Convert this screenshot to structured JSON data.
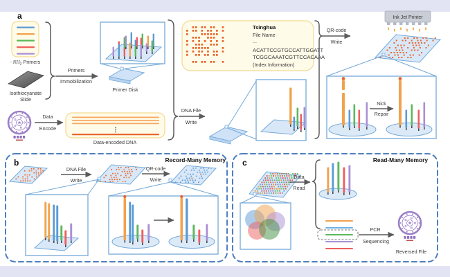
{
  "figure": {
    "panel_a": {
      "label": "a",
      "primers_math": "−NH",
      "primers_sub": "2",
      "primers_rest": " Primers",
      "slide_line1": "Isothiocyanate",
      "slide_line2": "Slide",
      "immobilization_line1": "Primers",
      "immobilization_line2": "Immobilization",
      "primer_disk": "Primer Disk",
      "encode_line1": "Data",
      "encode_line2": "Encode",
      "encoded_dna": "Data-encoded DNA",
      "file_title": "Tsinghua",
      "file_name": "File Name",
      "file_dots": "...",
      "file_seq1": "ACATTCCGTGCCATTGGATT",
      "file_seq2": "TCGGCAAATCGTTCCACAAA",
      "file_index": "(Index Information)",
      "dna_write_line1": "DNA File",
      "dna_write_line2": "Write",
      "qr_write_line1": "QR-code",
      "qr_write_line2": "Write",
      "printer": "Ink Jet Printer",
      "nick_line1": "Nick",
      "nick_line2": "Repair"
    },
    "panel_b": {
      "label": "b",
      "title": "Record-Many Memory",
      "dna_write_line1": "DNA File",
      "dna_write_line2": "Write",
      "qr_write_line1": "QR-code",
      "qr_write_line2": "Write"
    },
    "panel_c": {
      "label": "c",
      "title": "Read-Many Memory",
      "read_line1": "Data",
      "read_line2": "Read",
      "pcr_line1": "PCR",
      "pcr_line2": "Sequencing",
      "reversed_file": "Reversed File"
    }
  },
  "colors": {
    "band": "#e3e4f3",
    "strand_blue": "#5b9bd5",
    "strand_orange": "#f2a24c",
    "strand_green": "#5cb85c",
    "strand_red": "#ee5f5f",
    "strand_purple": "#ab8fd5",
    "qr_dot_orange": "#e8662c",
    "slide_fill": "#d9e8f8",
    "slide_border": "#74a9d8",
    "panel_dash": "#4e80c0",
    "yellow_box_fill": "#fffbe9",
    "yellow_box_border": "#f3d98f",
    "logo_purple": "#9b7fc7"
  }
}
